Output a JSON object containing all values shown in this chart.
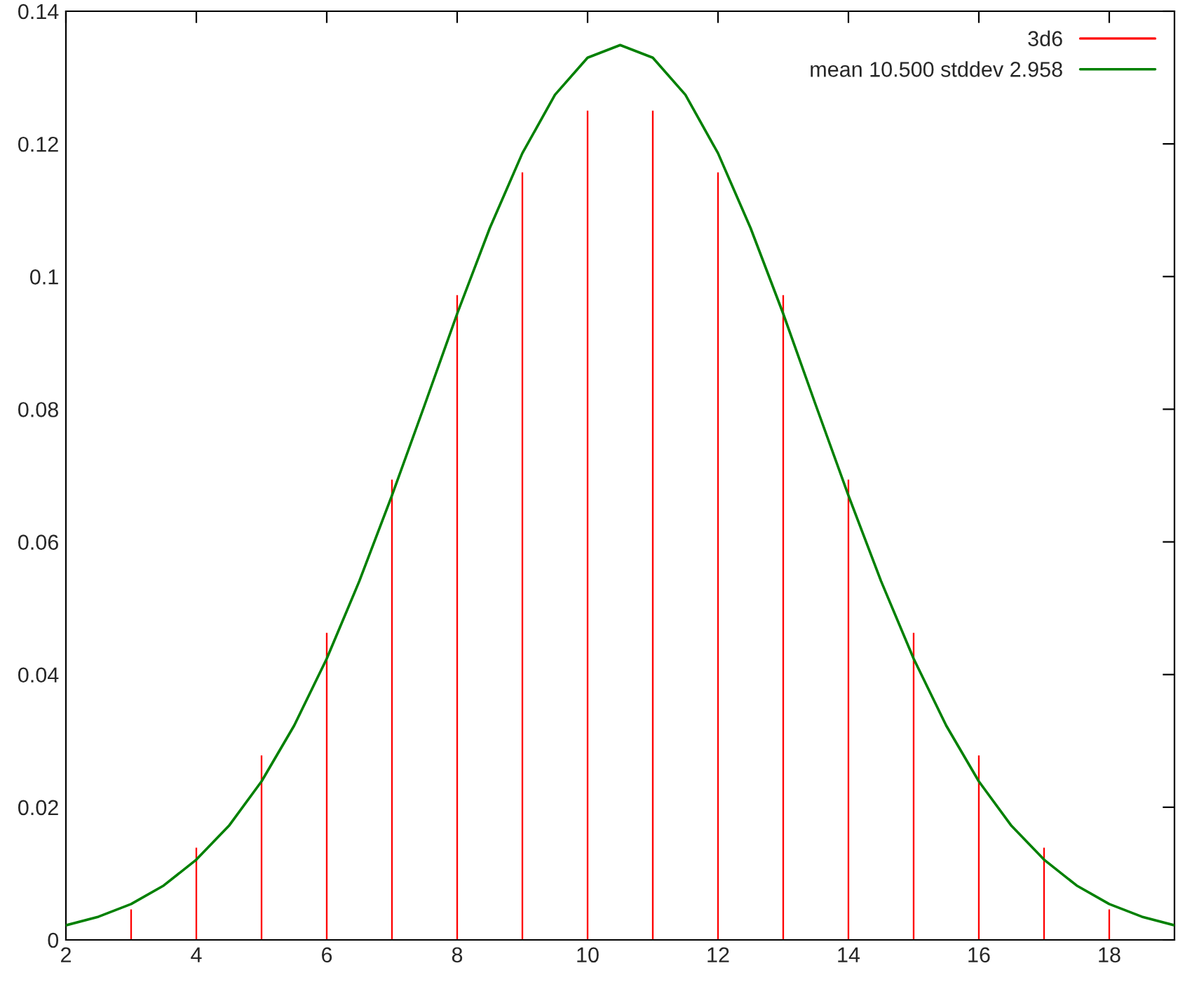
{
  "chart_data": {
    "type": "bar",
    "xlim": [
      2,
      19
    ],
    "xticks": [
      2,
      4,
      6,
      8,
      10,
      12,
      14,
      16,
      18
    ],
    "ylim": [
      0,
      0.14
    ],
    "yticks": [
      0,
      0.02,
      0.04,
      0.06,
      0.08,
      0.1,
      0.12,
      0.14
    ],
    "grid": false,
    "legend": "top right",
    "series": [
      {
        "name": "3d6",
        "color": "#ff0000",
        "x": [
          3,
          4,
          5,
          6,
          7,
          8,
          9,
          10,
          11,
          12,
          13,
          14,
          15,
          16,
          17,
          18
        ],
        "values": [
          0.0046,
          0.0139,
          0.0278,
          0.0463,
          0.0694,
          0.0972,
          0.1157,
          0.125,
          0.125,
          0.1157,
          0.0972,
          0.0694,
          0.0463,
          0.0278,
          0.0139,
          0.0046
        ]
      },
      {
        "name": "mean 10.500 stddev 2.958",
        "type": "line",
        "color": "#008000",
        "x": [
          2,
          2.5,
          3,
          3.5,
          4,
          4.5,
          5,
          5.5,
          6,
          6.5,
          7,
          7.5,
          8,
          8.5,
          9,
          9.5,
          10,
          10.5,
          11,
          11.5,
          12,
          12.5,
          13,
          13.5,
          14,
          14.5,
          15,
          15.5,
          16,
          16.5,
          17,
          17.5,
          18,
          18.5,
          19
        ],
        "values": [
          0.0022,
          0.0035,
          0.0054,
          0.0082,
          0.0121,
          0.0172,
          0.0239,
          0.0323,
          0.0424,
          0.0541,
          0.067,
          0.0806,
          0.0944,
          0.1073,
          0.1186,
          0.1274,
          0.133,
          0.1349,
          0.133,
          0.1274,
          0.1186,
          0.1073,
          0.0944,
          0.0806,
          0.067,
          0.0541,
          0.0424,
          0.0323,
          0.0239,
          0.0172,
          0.0121,
          0.0082,
          0.0054,
          0.0035,
          0.0022
        ]
      }
    ]
  }
}
